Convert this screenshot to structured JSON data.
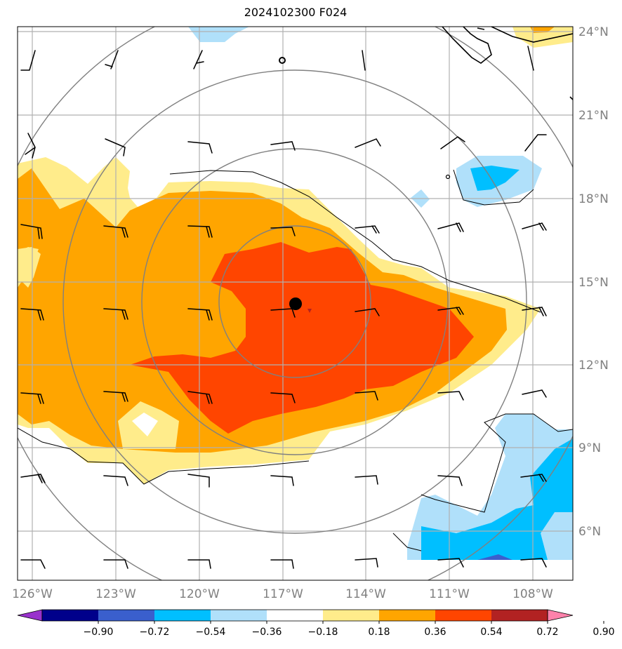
{
  "title": "2024102300 F024",
  "longitude_labels": [
    "126°W",
    "123°W",
    "120°W",
    "117°W",
    "114°W",
    "111°W",
    "108°W"
  ],
  "latitude_labels": [
    "24°N",
    "21°N",
    "18°N",
    "15°N",
    "12°N",
    "9°N",
    "6°N"
  ],
  "colorbar": {
    "tick_labels": [
      "−0.90",
      "−0.72",
      "−0.54",
      "−0.36",
      "−0.18",
      "0.18",
      "0.36",
      "0.54",
      "0.72",
      "0.90"
    ],
    "colors": [
      "#9932cc",
      "#00008b",
      "#3a5fcd",
      "#00bfff",
      "#b0e0fa",
      "#ffffff",
      "#ffec8b",
      "#ffa500",
      "#ff4500",
      "#b22222",
      "#ff82ab"
    ]
  },
  "colors": {
    "grid": "#b0b0b0",
    "range_rings": "#808080",
    "coastline": "#000000",
    "storm_center": "#000000"
  },
  "storm_center": {
    "lon": -116.6,
    "lat": 14.2
  }
}
